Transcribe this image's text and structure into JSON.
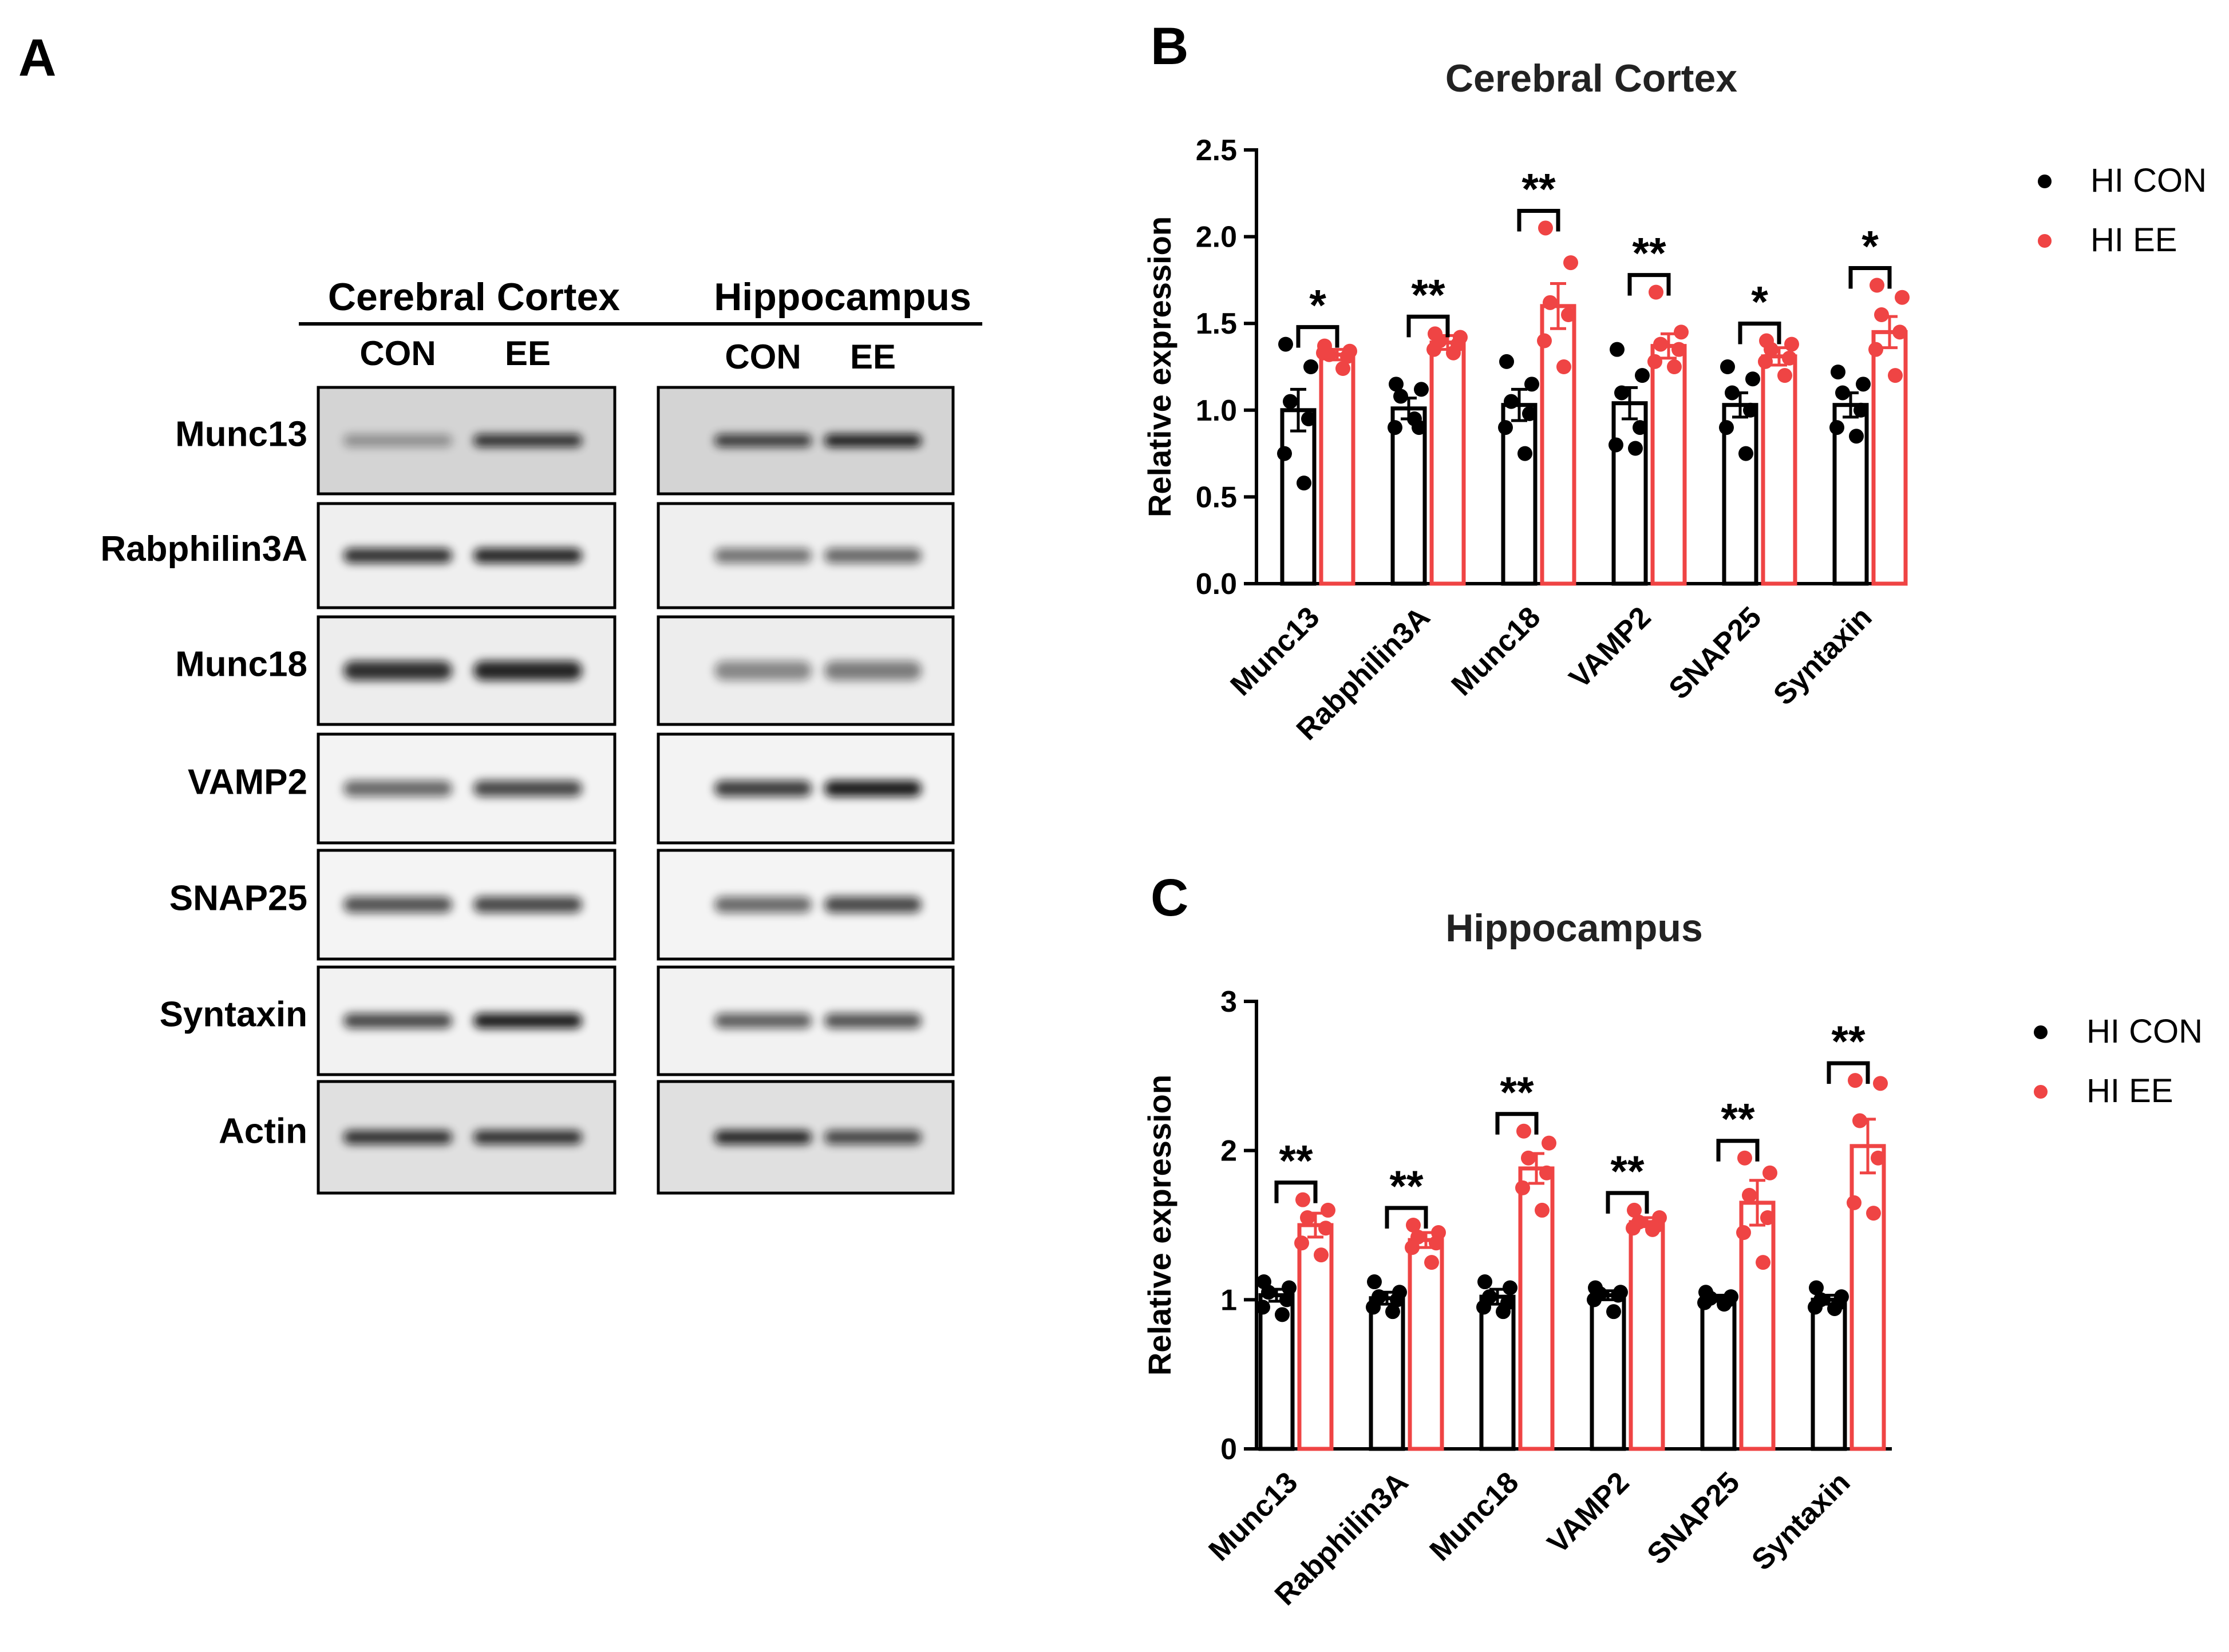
{
  "panel_a": {
    "label": "A",
    "group_left": "Cerebral Cortex",
    "group_right": "Hippocampus",
    "lanes_left": [
      "CON",
      "EE"
    ],
    "lanes_right": [
      "CON",
      "EE"
    ],
    "rows": [
      "Munc13",
      "Rabphilin3A",
      "Munc18",
      "VAMP2",
      "SNAP25",
      "Syntaxin",
      "Actin"
    ]
  },
  "legend": {
    "series_1": "HI CON",
    "series_2": "HI EE"
  },
  "colors": {
    "con": "#000000",
    "ee": "#ef4444"
  },
  "chart_data": [
    {
      "panel_label": "B",
      "type": "bar",
      "title": "Cerebral Cortex",
      "xlabel": "",
      "ylabel": "Relative expression",
      "ylim": [
        0,
        2.5
      ],
      "yticks": [
        "0.0",
        "0.5",
        "1.0",
        "1.5",
        "2.0",
        "2.5"
      ],
      "categories": [
        "Munc13",
        "Rabphilin3A",
        "Munc18",
        "VAMP2",
        "SNAP25",
        "Syntaxin"
      ],
      "series": [
        {
          "name": "HI CON",
          "values": [
            1.0,
            1.01,
            1.03,
            1.04,
            1.03,
            1.03
          ],
          "sem": [
            0.12,
            0.06,
            0.09,
            0.09,
            0.07,
            0.07
          ],
          "points": [
            [
              1.38,
              1.25,
              1.05,
              0.95,
              0.75,
              0.58
            ],
            [
              1.15,
              1.12,
              1.08,
              0.9,
              0.9,
              0.95
            ],
            [
              1.28,
              1.15,
              1.05,
              0.98,
              0.9,
              0.75
            ],
            [
              1.35,
              1.2,
              1.1,
              0.9,
              0.8,
              0.78
            ],
            [
              1.25,
              1.18,
              1.1,
              1.0,
              0.9,
              0.75
            ],
            [
              1.22,
              1.15,
              1.1,
              1.0,
              0.9,
              0.85
            ]
          ]
        },
        {
          "name": "HI EE",
          "values": [
            1.32,
            1.39,
            1.6,
            1.37,
            1.31,
            1.45
          ],
          "sem": [
            0.03,
            0.04,
            0.13,
            0.07,
            0.05,
            0.09
          ],
          "points": [
            [
              1.37,
              1.34,
              1.32,
              1.31,
              1.33,
              1.24
            ],
            [
              1.44,
              1.42,
              1.4,
              1.38,
              1.35,
              1.33
            ],
            [
              2.05,
              1.85,
              1.62,
              1.55,
              1.4,
              1.25
            ],
            [
              1.68,
              1.45,
              1.38,
              1.35,
              1.28,
              1.25
            ],
            [
              1.4,
              1.38,
              1.35,
              1.3,
              1.28,
              1.2
            ],
            [
              1.72,
              1.65,
              1.55,
              1.45,
              1.35,
              1.2
            ]
          ]
        }
      ],
      "significance": [
        "*",
        "**",
        "**",
        "**",
        "*",
        "*"
      ],
      "legend_position": "right"
    },
    {
      "panel_label": "C",
      "type": "bar",
      "title": "Hippocampus",
      "xlabel": "",
      "ylabel": "Relative expression",
      "ylim": [
        0,
        3
      ],
      "yticks": [
        "0",
        "1",
        "2",
        "3"
      ],
      "categories": [
        "Munc13",
        "Rabphilin3A",
        "Munc18",
        "VAMP2",
        "SNAP25",
        "Syntaxin"
      ],
      "series": [
        {
          "name": "HI CON",
          "values": [
            1.03,
            1.01,
            1.02,
            1.03,
            1.01,
            1.0
          ],
          "sem": [
            0.04,
            0.04,
            0.05,
            0.03,
            0.02,
            0.03
          ],
          "points": [
            [
              1.12,
              1.08,
              1.05,
              1.0,
              0.95,
              0.9
            ],
            [
              1.12,
              1.05,
              1.02,
              1.0,
              0.95,
              0.92
            ],
            [
              1.12,
              1.08,
              1.02,
              0.98,
              0.95,
              0.92
            ],
            [
              1.08,
              1.05,
              1.04,
              1.03,
              1.0,
              0.92
            ],
            [
              1.05,
              1.02,
              1.01,
              1.0,
              0.98,
              0.97
            ],
            [
              1.08,
              1.02,
              1.0,
              0.98,
              0.95,
              0.94
            ]
          ]
        },
        {
          "name": "HI EE",
          "values": [
            1.5,
            1.4,
            1.88,
            1.52,
            1.65,
            2.03
          ],
          "sem": [
            0.08,
            0.05,
            0.1,
            0.03,
            0.15,
            0.18
          ],
          "points": [
            [
              1.67,
              1.6,
              1.55,
              1.48,
              1.38,
              1.3
            ],
            [
              1.5,
              1.45,
              1.42,
              1.38,
              1.35,
              1.25
            ],
            [
              2.13,
              2.05,
              1.95,
              1.85,
              1.75,
              1.6
            ],
            [
              1.6,
              1.55,
              1.52,
              1.5,
              1.48,
              1.47
            ],
            [
              1.95,
              1.85,
              1.7,
              1.55,
              1.45,
              1.25
            ],
            [
              2.47,
              2.45,
              2.2,
              1.95,
              1.65,
              1.58
            ]
          ]
        }
      ],
      "significance": [
        "**",
        "**",
        "**",
        "**",
        "**",
        "**"
      ],
      "legend_position": "right"
    }
  ]
}
